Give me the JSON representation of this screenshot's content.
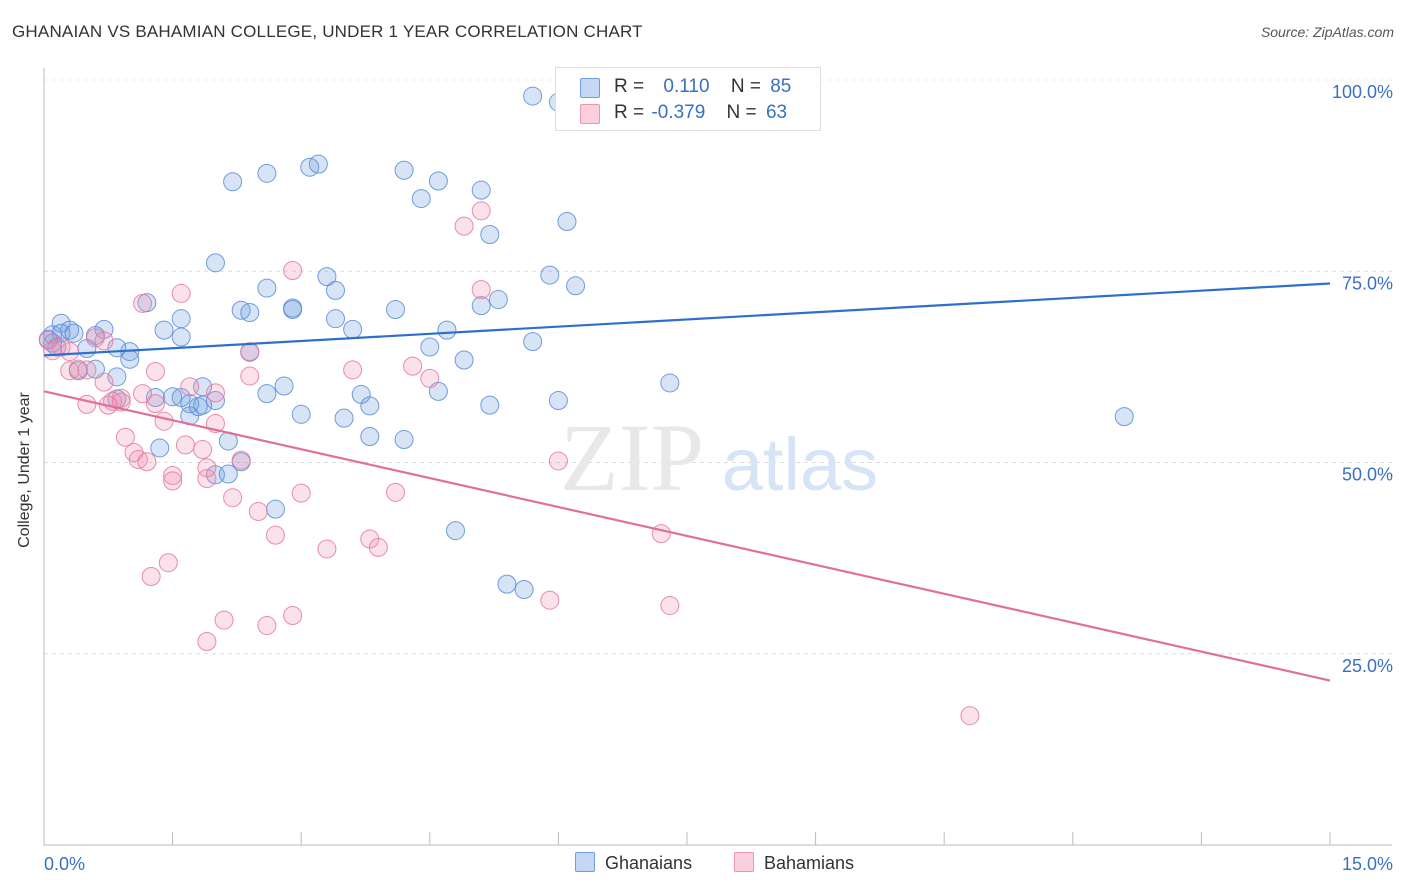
{
  "title": "GHANAIAN VS BAHAMIAN COLLEGE, UNDER 1 YEAR CORRELATION CHART",
  "source": "Source: ZipAtlas.com",
  "watermark": {
    "zip": "ZIP",
    "atlas": "atlas"
  },
  "legend": {
    "series1": {
      "r_label": "R =",
      "r_value": "0.110",
      "n_label": "N =",
      "n_value": "85"
    },
    "series2": {
      "r_label": "R =",
      "r_value": "-0.379",
      "n_label": "N =",
      "n_value": "63"
    }
  },
  "chart_data": {
    "type": "scatter",
    "title": "GHANAIAN VS BAHAMIAN COLLEGE, UNDER 1 YEAR CORRELATION CHART",
    "xlabel": "",
    "ylabel": "College, Under 1 year",
    "xlim": [
      0,
      15
    ],
    "ylim": [
      0,
      100
    ],
    "x_tick_labels": [
      "0.0%",
      "15.0%"
    ],
    "y_ticks": [
      25,
      50,
      75,
      100
    ],
    "y_tick_labels": [
      "25.0%",
      "50.0%",
      "75.0%",
      "100.0%"
    ],
    "grid": true,
    "legend_position": "bottom-center",
    "colors": {
      "Ghanaians": "#6f9ee0",
      "Bahamians": "#ef93b1",
      "Ghanaians_line": "#2f6fcc",
      "Bahamians_line": "#e0709a"
    },
    "series": [
      {
        "name": "Ghanaians",
        "trend": {
          "x": [
            0,
            15
          ],
          "y": [
            64.0,
            73.4
          ]
        },
        "points": [
          [
            5.7,
            97.9
          ],
          [
            6.0,
            97.1
          ],
          [
            2.2,
            86.7
          ],
          [
            2.6,
            87.8
          ],
          [
            3.1,
            88.6
          ],
          [
            3.2,
            89.0
          ],
          [
            4.2,
            88.2
          ],
          [
            4.6,
            86.8
          ],
          [
            4.4,
            84.5
          ],
          [
            5.1,
            85.6
          ],
          [
            6.1,
            81.5
          ],
          [
            5.2,
            79.8
          ],
          [
            2.0,
            76.1
          ],
          [
            3.3,
            74.3
          ],
          [
            5.9,
            74.5
          ],
          [
            2.6,
            72.8
          ],
          [
            3.4,
            72.5
          ],
          [
            6.2,
            73.1
          ],
          [
            5.3,
            71.3
          ],
          [
            5.1,
            70.5
          ],
          [
            1.2,
            70.9
          ],
          [
            2.3,
            69.9
          ],
          [
            2.4,
            69.6
          ],
          [
            2.9,
            70.2
          ],
          [
            4.1,
            70.0
          ],
          [
            1.6,
            68.8
          ],
          [
            3.4,
            68.8
          ],
          [
            0.2,
            68.2
          ],
          [
            0.3,
            67.3
          ],
          [
            0.7,
            67.4
          ],
          [
            1.4,
            67.3
          ],
          [
            3.6,
            67.4
          ],
          [
            4.7,
            67.3
          ],
          [
            0.1,
            66.7
          ],
          [
            0.2,
            66.9
          ],
          [
            0.6,
            66.6
          ],
          [
            1.6,
            66.4
          ],
          [
            0.05,
            66.1
          ],
          [
            0.1,
            65.6
          ],
          [
            0.15,
            65.1
          ],
          [
            0.5,
            64.9
          ],
          [
            1.0,
            64.5
          ],
          [
            0.85,
            65.0
          ],
          [
            2.4,
            64.4
          ],
          [
            4.5,
            65.1
          ],
          [
            5.7,
            65.8
          ],
          [
            1.0,
            63.5
          ],
          [
            4.9,
            63.4
          ],
          [
            0.4,
            62.0
          ],
          [
            0.6,
            62.2
          ],
          [
            0.85,
            61.2
          ],
          [
            2.8,
            60.0
          ],
          [
            1.85,
            59.9
          ],
          [
            4.6,
            59.3
          ],
          [
            7.3,
            60.4
          ],
          [
            2.6,
            59.0
          ],
          [
            3.7,
            58.9
          ],
          [
            1.3,
            58.5
          ],
          [
            1.5,
            58.6
          ],
          [
            1.6,
            58.5
          ],
          [
            0.85,
            58.3
          ],
          [
            6.0,
            58.1
          ],
          [
            2.0,
            58.1
          ],
          [
            1.7,
            57.7
          ],
          [
            1.85,
            57.5
          ],
          [
            5.2,
            57.5
          ],
          [
            3.8,
            57.4
          ],
          [
            1.7,
            56.1
          ],
          [
            3.0,
            56.3
          ],
          [
            3.5,
            55.8
          ],
          [
            12.6,
            56.0
          ],
          [
            3.8,
            53.4
          ],
          [
            4.2,
            53.0
          ],
          [
            2.15,
            52.8
          ],
          [
            1.35,
            51.9
          ],
          [
            2.3,
            50.1
          ],
          [
            2.0,
            48.4
          ],
          [
            2.15,
            48.5
          ],
          [
            2.7,
            43.9
          ],
          [
            4.8,
            41.1
          ],
          [
            5.4,
            34.1
          ],
          [
            5.6,
            33.4
          ],
          [
            0.35,
            66.9
          ],
          [
            1.8,
            57.3
          ],
          [
            2.9,
            70.0
          ]
        ]
      },
      {
        "name": "Bahamians",
        "trend": {
          "x": [
            0,
            15
          ],
          "y": [
            59.3,
            21.5
          ]
        },
        "points": [
          [
            5.1,
            82.9
          ],
          [
            4.9,
            80.9
          ],
          [
            2.9,
            75.1
          ],
          [
            5.1,
            72.6
          ],
          [
            1.6,
            72.1
          ],
          [
            1.15,
            70.8
          ],
          [
            0.05,
            66.0
          ],
          [
            0.2,
            65.1
          ],
          [
            0.3,
            64.5
          ],
          [
            0.6,
            66.3
          ],
          [
            0.7,
            65.9
          ],
          [
            0.1,
            64.6
          ],
          [
            2.4,
            64.5
          ],
          [
            0.3,
            62.0
          ],
          [
            0.5,
            62.1
          ],
          [
            0.4,
            62.2
          ],
          [
            4.3,
            62.6
          ],
          [
            3.6,
            62.1
          ],
          [
            1.3,
            61.9
          ],
          [
            2.4,
            61.3
          ],
          [
            4.5,
            61.0
          ],
          [
            0.7,
            60.5
          ],
          [
            1.7,
            59.9
          ],
          [
            2.0,
            59.1
          ],
          [
            0.9,
            58.4
          ],
          [
            0.8,
            58.0
          ],
          [
            0.9,
            57.9
          ],
          [
            0.5,
            57.6
          ],
          [
            1.3,
            57.7
          ],
          [
            1.4,
            55.4
          ],
          [
            2.0,
            55.1
          ],
          [
            0.95,
            53.3
          ],
          [
            1.65,
            52.3
          ],
          [
            1.85,
            51.7
          ],
          [
            1.05,
            51.3
          ],
          [
            1.1,
            50.4
          ],
          [
            1.2,
            50.1
          ],
          [
            2.3,
            50.3
          ],
          [
            6.0,
            50.2
          ],
          [
            1.9,
            49.3
          ],
          [
            1.5,
            48.3
          ],
          [
            1.5,
            47.6
          ],
          [
            1.9,
            47.9
          ],
          [
            3.0,
            46.0
          ],
          [
            4.1,
            46.1
          ],
          [
            2.2,
            45.4
          ],
          [
            2.5,
            43.6
          ],
          [
            2.7,
            40.5
          ],
          [
            3.8,
            40.0
          ],
          [
            3.3,
            38.7
          ],
          [
            3.9,
            38.9
          ],
          [
            7.2,
            40.7
          ],
          [
            1.45,
            36.9
          ],
          [
            1.25,
            35.1
          ],
          [
            5.9,
            32.0
          ],
          [
            7.3,
            31.3
          ],
          [
            2.9,
            30.0
          ],
          [
            2.1,
            29.4
          ],
          [
            2.6,
            28.7
          ],
          [
            1.9,
            26.6
          ],
          [
            10.8,
            16.9
          ],
          [
            0.75,
            57.5
          ],
          [
            1.15,
            59.0
          ]
        ]
      }
    ]
  },
  "bottom_legend": {
    "series1": "Ghanaians",
    "series2": "Bahamians"
  }
}
